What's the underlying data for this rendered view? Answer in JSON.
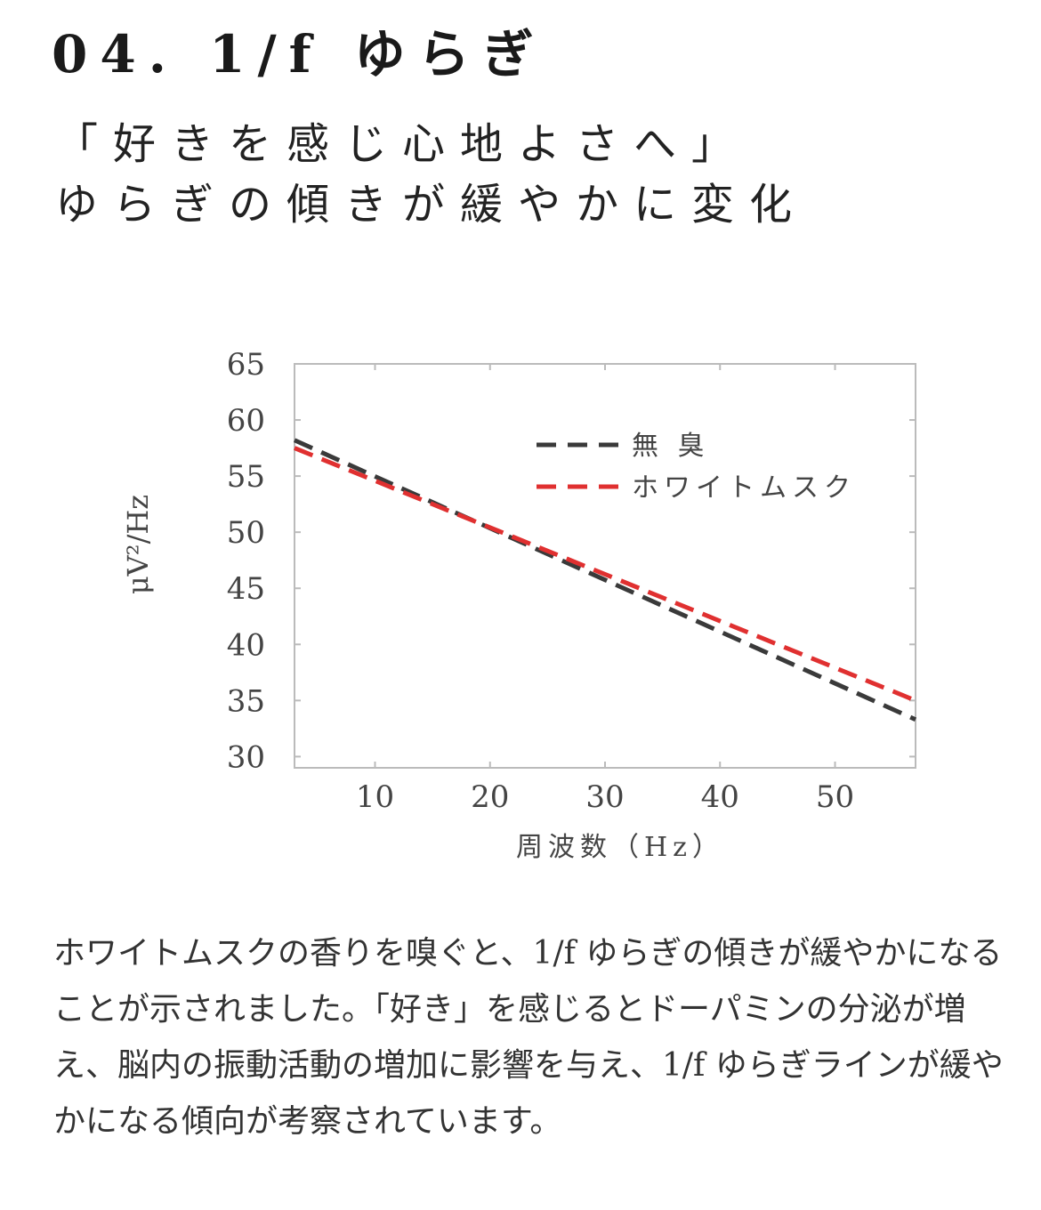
{
  "header": {
    "title": "04. 1/f ゆらぎ",
    "subtitle_line1": "「好きを感じ心地よさへ」",
    "subtitle_line2": "ゆらぎの傾きが緩やかに変化"
  },
  "chart_data": {
    "type": "line",
    "xlabel": "周波数（Hz）",
    "ylabel": "μV²/Hz",
    "xlim": [
      3,
      57
    ],
    "ylim": [
      29,
      65
    ],
    "xticks": [
      10,
      20,
      30,
      40,
      50
    ],
    "yticks": [
      30,
      35,
      40,
      45,
      50,
      55,
      60,
      65
    ],
    "grid": false,
    "legend_position": "top-right",
    "series": [
      {
        "name": "無 臭",
        "color": "#3a3a3a",
        "style": "dashed",
        "x": [
          3,
          57
        ],
        "y": [
          58.2,
          33.3
        ]
      },
      {
        "name": "ホワイトムスク",
        "color": "#e03030",
        "style": "dashed",
        "x": [
          3,
          57
        ],
        "y": [
          57.5,
          35.0
        ]
      }
    ]
  },
  "body": {
    "text": "ホワイトムスクの香りを嗅ぐと、1/f ゆらぎの傾きが緩やかになることが示されました。「好き」を感じるとドーパミンの分泌が増え、脳内の振動活動の増加に影響を与え、1/f ゆらぎラインが緩やかになる傾向が考察されています。"
  }
}
